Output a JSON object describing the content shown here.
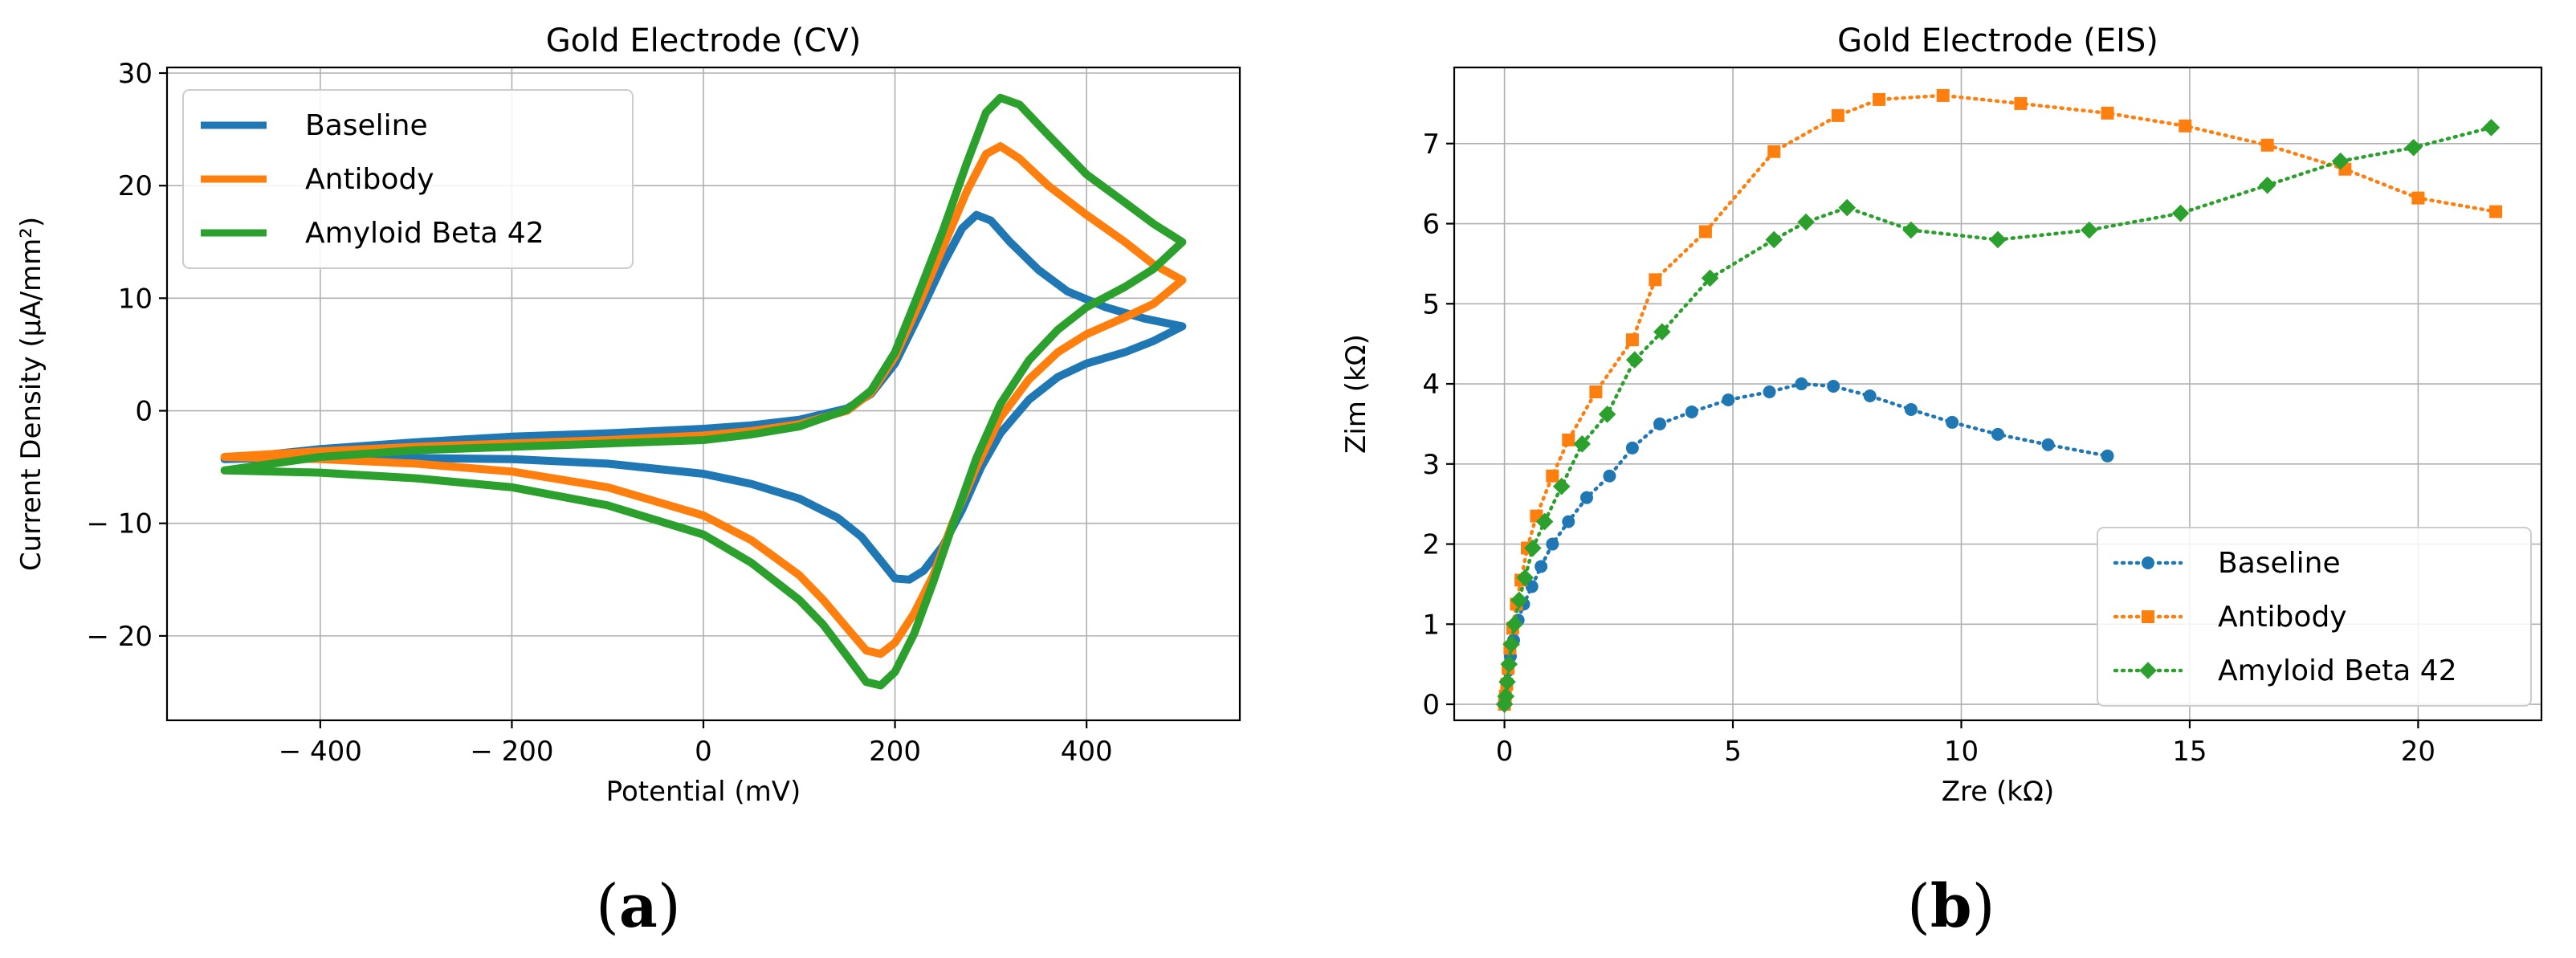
{
  "chart_data": [
    {
      "type": "line",
      "title": "Gold Electrode (CV)",
      "xlabel": "Potential (mV)",
      "ylabel": "Current Density (μA/mm²)",
      "xlim": [
        -560,
        560
      ],
      "ylim": [
        -27.5,
        30.5
      ],
      "xticks": [
        -400,
        -200,
        0,
        200,
        400
      ],
      "xtick_labels": [
        "− 400",
        "− 200",
        "0",
        "200",
        "400"
      ],
      "yticks": [
        -20,
        -10,
        0,
        10,
        20,
        30
      ],
      "ytick_labels": [
        "− 20",
        "− 10",
        "0",
        "10",
        "20",
        "30"
      ],
      "grid": true,
      "legend_position": "upper-left",
      "series": [
        {
          "name": "Baseline",
          "color": "#1f77b4",
          "forward": [
            [
              -500,
              -4.3
            ],
            [
              -400,
              -3.4
            ],
            [
              -300,
              -2.8
            ],
            [
              -200,
              -2.3
            ],
            [
              -100,
              -2.0
            ],
            [
              0,
              -1.6
            ],
            [
              50,
              -1.3
            ],
            [
              100,
              -0.8
            ],
            [
              150,
              0.2
            ],
            [
              175,
              1.5
            ],
            [
              200,
              4.2
            ],
            [
              225,
              8.5
            ],
            [
              250,
              13.0
            ],
            [
              270,
              16.2
            ],
            [
              285,
              17.4
            ],
            [
              300,
              16.9
            ],
            [
              320,
              15.0
            ],
            [
              350,
              12.5
            ],
            [
              380,
              10.6
            ],
            [
              420,
              9.2
            ],
            [
              460,
              8.2
            ],
            [
              500,
              7.5
            ]
          ],
          "reverse": [
            [
              500,
              7.0
            ],
            [
              470,
              6.2
            ],
            [
              440,
              5.2
            ],
            [
              400,
              4.2
            ],
            [
              370,
              3.0
            ],
            [
              340,
              1.0
            ],
            [
              310,
              -2.0
            ],
            [
              290,
              -5.0
            ],
            [
              270,
              -8.8
            ],
            [
              250,
              -12.0
            ],
            [
              230,
              -14.2
            ],
            [
              215,
              -15.0
            ],
            [
              200,
              -14.9
            ],
            [
              185,
              -13.3
            ],
            [
              165,
              -11.2
            ],
            [
              140,
              -9.5
            ],
            [
              100,
              -7.8
            ],
            [
              50,
              -6.5
            ],
            [
              0,
              -5.6
            ],
            [
              -100,
              -4.7
            ],
            [
              -200,
              -4.3
            ],
            [
              -300,
              -4.2
            ],
            [
              -400,
              -4.1
            ],
            [
              -500,
              -4.3
            ]
          ]
        },
        {
          "name": "Antibody",
          "color": "#ff7f0e",
          "forward": [
            [
              -500,
              -4.1
            ],
            [
              -400,
              -3.6
            ],
            [
              -300,
              -3.2
            ],
            [
              -200,
              -2.9
            ],
            [
              -100,
              -2.6
            ],
            [
              0,
              -2.2
            ],
            [
              50,
              -1.8
            ],
            [
              100,
              -1.2
            ],
            [
              150,
              0.0
            ],
            [
              175,
              1.6
            ],
            [
              200,
              4.8
            ],
            [
              225,
              9.5
            ],
            [
              250,
              14.5
            ],
            [
              275,
              19.5
            ],
            [
              295,
              22.8
            ],
            [
              310,
              23.5
            ],
            [
              330,
              22.4
            ],
            [
              360,
              20.0
            ],
            [
              400,
              17.4
            ],
            [
              440,
              15.0
            ],
            [
              470,
              13.0
            ],
            [
              500,
              11.6
            ]
          ],
          "reverse": [
            [
              500,
              11.2
            ],
            [
              470,
              9.5
            ],
            [
              440,
              8.3
            ],
            [
              400,
              6.8
            ],
            [
              370,
              5.2
            ],
            [
              340,
              2.8
            ],
            [
              310,
              -0.6
            ],
            [
              285,
              -5.0
            ],
            [
              260,
              -10.0
            ],
            [
              240,
              -14.6
            ],
            [
              220,
              -18.0
            ],
            [
              200,
              -20.6
            ],
            [
              185,
              -21.6
            ],
            [
              170,
              -21.3
            ],
            [
              150,
              -19.3
            ],
            [
              125,
              -16.8
            ],
            [
              100,
              -14.6
            ],
            [
              50,
              -11.5
            ],
            [
              0,
              -9.3
            ],
            [
              -100,
              -6.8
            ],
            [
              -200,
              -5.4
            ],
            [
              -300,
              -4.7
            ],
            [
              -400,
              -4.3
            ],
            [
              -500,
              -4.1
            ]
          ]
        },
        {
          "name": "Amyloid Beta 42",
          "color": "#2ca02c",
          "forward": [
            [
              -500,
              -5.3
            ],
            [
              -400,
              -4.1
            ],
            [
              -300,
              -3.5
            ],
            [
              -200,
              -3.2
            ],
            [
              -100,
              -2.9
            ],
            [
              0,
              -2.6
            ],
            [
              50,
              -2.1
            ],
            [
              100,
              -1.4
            ],
            [
              150,
              0.1
            ],
            [
              175,
              1.8
            ],
            [
              200,
              5.2
            ],
            [
              225,
              10.5
            ],
            [
              250,
              16.0
            ],
            [
              275,
              22.0
            ],
            [
              295,
              26.5
            ],
            [
              310,
              27.8
            ],
            [
              330,
              27.2
            ],
            [
              360,
              24.5
            ],
            [
              400,
              21.0
            ],
            [
              440,
              18.5
            ],
            [
              470,
              16.6
            ],
            [
              500,
              15.0
            ]
          ],
          "reverse": [
            [
              500,
              14.2
            ],
            [
              470,
              12.6
            ],
            [
              440,
              11.0
            ],
            [
              400,
              9.2
            ],
            [
              370,
              7.2
            ],
            [
              340,
              4.5
            ],
            [
              310,
              0.6
            ],
            [
              285,
              -4.2
            ],
            [
              260,
              -10.2
            ],
            [
              240,
              -15.2
            ],
            [
              220,
              -19.8
            ],
            [
              200,
              -23.2
            ],
            [
              185,
              -24.4
            ],
            [
              170,
              -24.1
            ],
            [
              150,
              -21.8
            ],
            [
              125,
              -19.0
            ],
            [
              100,
              -16.8
            ],
            [
              50,
              -13.5
            ],
            [
              0,
              -11.0
            ],
            [
              -100,
              -8.4
            ],
            [
              -200,
              -6.8
            ],
            [
              -300,
              -6.0
            ],
            [
              -400,
              -5.5
            ],
            [
              -500,
              -5.3
            ]
          ]
        }
      ]
    },
    {
      "type": "line",
      "title": "Gold Electrode (EIS)",
      "xlabel": "Zre (kΩ)",
      "ylabel": "Zim (kΩ)",
      "xlim": [
        -1.1,
        22.7
      ],
      "ylim": [
        -0.2,
        7.95
      ],
      "xticks": [
        0,
        5,
        10,
        15,
        20
      ],
      "xtick_labels": [
        "0",
        "5",
        "10",
        "15",
        "20"
      ],
      "yticks": [
        0,
        1,
        2,
        3,
        4,
        5,
        6,
        7
      ],
      "ytick_labels": [
        "0",
        "1",
        "2",
        "3",
        "4",
        "5",
        "6",
        "7"
      ],
      "grid": true,
      "legend_position": "lower-right",
      "series": [
        {
          "name": "Baseline",
          "color": "#1f77b4",
          "marker": "circle",
          "points": [
            [
              0.0,
              0.0
            ],
            [
              0.02,
              0.1
            ],
            [
              0.05,
              0.25
            ],
            [
              0.08,
              0.42
            ],
            [
              0.13,
              0.6
            ],
            [
              0.2,
              0.8
            ],
            [
              0.3,
              1.05
            ],
            [
              0.42,
              1.25
            ],
            [
              0.6,
              1.47
            ],
            [
              0.8,
              1.72
            ],
            [
              1.05,
              2.0
            ],
            [
              1.4,
              2.28
            ],
            [
              1.8,
              2.58
            ],
            [
              2.3,
              2.85
            ],
            [
              2.8,
              3.2
            ],
            [
              3.4,
              3.5
            ],
            [
              4.1,
              3.65
            ],
            [
              4.9,
              3.8
            ],
            [
              5.8,
              3.9
            ],
            [
              6.5,
              4.0
            ],
            [
              7.2,
              3.97
            ],
            [
              8.0,
              3.85
            ],
            [
              8.9,
              3.68
            ],
            [
              9.8,
              3.52
            ],
            [
              10.8,
              3.37
            ],
            [
              11.9,
              3.24
            ],
            [
              13.2,
              3.1
            ]
          ]
        },
        {
          "name": "Antibody",
          "color": "#ff7f0e",
          "marker": "square",
          "points": [
            [
              0.0,
              0.0
            ],
            [
              0.02,
              0.1
            ],
            [
              0.05,
              0.25
            ],
            [
              0.08,
              0.45
            ],
            [
              0.12,
              0.7
            ],
            [
              0.18,
              0.95
            ],
            [
              0.26,
              1.25
            ],
            [
              0.36,
              1.55
            ],
            [
              0.5,
              1.95
            ],
            [
              0.7,
              2.35
            ],
            [
              1.05,
              2.85
            ],
            [
              1.4,
              3.3
            ],
            [
              2.0,
              3.9
            ],
            [
              2.8,
              4.55
            ],
            [
              3.3,
              5.3
            ],
            [
              4.4,
              5.9
            ],
            [
              5.9,
              6.9
            ],
            [
              7.3,
              7.35
            ],
            [
              8.2,
              7.55
            ],
            [
              9.6,
              7.6
            ],
            [
              11.3,
              7.5
            ],
            [
              13.2,
              7.38
            ],
            [
              14.9,
              7.22
            ],
            [
              16.7,
              6.98
            ],
            [
              18.4,
              6.68
            ],
            [
              20.0,
              6.32
            ],
            [
              21.7,
              6.15
            ]
          ]
        },
        {
          "name": "Amyloid Beta 42",
          "color": "#2ca02c",
          "marker": "diamond",
          "points": [
            [
              0.0,
              0.0
            ],
            [
              0.03,
              0.1
            ],
            [
              0.06,
              0.28
            ],
            [
              0.1,
              0.5
            ],
            [
              0.15,
              0.75
            ],
            [
              0.22,
              1.0
            ],
            [
              0.32,
              1.3
            ],
            [
              0.45,
              1.58
            ],
            [
              0.62,
              1.95
            ],
            [
              0.88,
              2.28
            ],
            [
              1.25,
              2.72
            ],
            [
              1.7,
              3.25
            ],
            [
              2.25,
              3.62
            ],
            [
              2.85,
              4.3
            ],
            [
              3.45,
              4.65
            ],
            [
              4.5,
              5.32
            ],
            [
              5.9,
              5.8
            ],
            [
              6.6,
              6.02
            ],
            [
              7.5,
              6.2
            ],
            [
              8.9,
              5.92
            ],
            [
              10.8,
              5.8
            ],
            [
              12.8,
              5.92
            ],
            [
              14.8,
              6.13
            ],
            [
              16.7,
              6.48
            ],
            [
              18.3,
              6.78
            ],
            [
              19.9,
              6.95
            ],
            [
              21.6,
              7.2
            ]
          ]
        }
      ]
    }
  ],
  "panel_labels": [
    "(a)",
    "(b)"
  ]
}
